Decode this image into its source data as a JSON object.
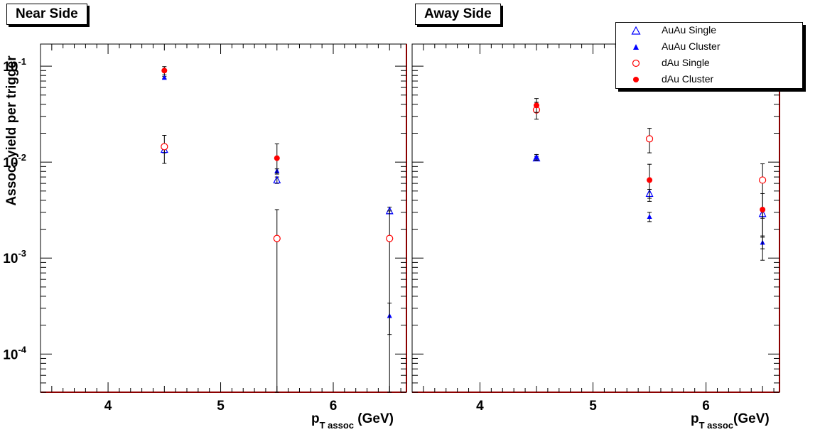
{
  "chart_data": [
    {
      "type": "scatter",
      "title": "Near Side",
      "xlabel": "p_T assoc (GeV)",
      "xlabel_main": "p",
      "xlabel_sub": "T assoc",
      "xlabel_unit": " (GeV)",
      "ylabel": "Assoc. yield per trigger",
      "xlim": [
        3.4,
        6.65
      ],
      "ylim": [
        4e-05,
        0.17
      ],
      "yscale": "log",
      "xticks": [
        4,
        5,
        6
      ],
      "xtick_labels": [
        "4",
        "5",
        "6"
      ],
      "yticks": [
        0.0001,
        0.001,
        0.01,
        0.1
      ],
      "ytick_base": [
        "10",
        "10",
        "10",
        "10"
      ],
      "ytick_exp": [
        "-4",
        "-3",
        "-2",
        "-1"
      ],
      "series": [
        {
          "name": "AuAu Single",
          "marker": "open-triangle",
          "color": "#0000ff",
          "points": [
            {
              "x": 4.5,
              "y": 0.0135,
              "lo": 0.0125,
              "hi": 0.0145
            },
            {
              "x": 5.5,
              "y": 0.0065,
              "lo": 0.006,
              "hi": 0.007
            },
            {
              "x": 6.5,
              "y": 0.0031,
              "lo": 0.0029,
              "hi": 0.0034
            }
          ]
        },
        {
          "name": "AuAu Cluster",
          "marker": "filled-triangle",
          "color": "#0000ff",
          "points": [
            {
              "x": 4.5,
              "y": 0.076,
              "lo": 0.074,
              "hi": 0.078
            },
            {
              "x": 5.5,
              "y": 0.0081,
              "lo": 0.0077,
              "hi": 0.0085
            },
            {
              "x": 6.5,
              "y": 0.00025,
              "lo": 0.00016,
              "hi": 0.00034
            }
          ]
        },
        {
          "name": "dAu Single",
          "marker": "open-circle",
          "color": "#ff0000",
          "points": [
            {
              "x": 4.5,
              "y": 0.0145,
              "lo": 0.0097,
              "hi": 0.019
            },
            {
              "x": 5.5,
              "y": 0.0016,
              "lo": 1e-05,
              "hi": 0.0032
            },
            {
              "x": 6.5,
              "y": 0.0016,
              "lo": 1e-05,
              "hi": 0.0031
            }
          ]
        },
        {
          "name": "dAu Cluster",
          "marker": "filled-circle",
          "color": "#ff0000",
          "points": [
            {
              "x": 4.5,
              "y": 0.09,
              "lo": 0.081,
              "hi": 0.099
            },
            {
              "x": 5.5,
              "y": 0.011,
              "lo": 0.0075,
              "hi": 0.0155
            }
          ]
        }
      ]
    },
    {
      "type": "scatter",
      "title": "Away Side",
      "xlabel": "p_T assoc (GeV)",
      "xlabel_main": "p",
      "xlabel_sub": "T assoc",
      "xlabel_unit": "(GeV)",
      "ylabel": "",
      "xlim": [
        3.4,
        6.65
      ],
      "ylim": [
        4e-05,
        0.17
      ],
      "yscale": "log",
      "xticks": [
        4,
        5,
        6
      ],
      "xtick_labels": [
        "4",
        "5",
        "6"
      ],
      "series": [
        {
          "name": "AuAu Single",
          "marker": "open-triangle",
          "color": "#0000ff",
          "points": [
            {
              "x": 4.5,
              "y": 0.011,
              "lo": 0.0105,
              "hi": 0.0115
            },
            {
              "x": 5.5,
              "y": 0.0047,
              "lo": 0.0042,
              "hi": 0.0052
            },
            {
              "x": 6.5,
              "y": 0.0029,
              "lo": 0.0026,
              "hi": 0.0032
            }
          ]
        },
        {
          "name": "AuAu Cluster",
          "marker": "filled-triangle",
          "color": "#0000ff",
          "points": [
            {
              "x": 4.5,
              "y": 0.0112,
              "lo": 0.0105,
              "hi": 0.012
            },
            {
              "x": 5.5,
              "y": 0.0027,
              "lo": 0.0024,
              "hi": 0.003
            },
            {
              "x": 6.5,
              "y": 0.00145,
              "lo": 0.00125,
              "hi": 0.00165
            }
          ]
        },
        {
          "name": "dAu Single",
          "marker": "open-circle",
          "color": "#ff0000",
          "points": [
            {
              "x": 4.5,
              "y": 0.035,
              "lo": 0.028,
              "hi": 0.042
            },
            {
              "x": 5.5,
              "y": 0.0175,
              "lo": 0.0125,
              "hi": 0.0225
            },
            {
              "x": 6.5,
              "y": 0.0065,
              "lo": 0.00095,
              "hi": 0.0096
            }
          ]
        },
        {
          "name": "dAu Cluster",
          "marker": "filled-circle",
          "color": "#ff0000",
          "points": [
            {
              "x": 4.5,
              "y": 0.039,
              "lo": 0.033,
              "hi": 0.046
            },
            {
              "x": 5.5,
              "y": 0.0065,
              "lo": 0.0039,
              "hi": 0.0095
            },
            {
              "x": 6.5,
              "y": 0.0032,
              "lo": 0.0017,
              "hi": 0.0047
            }
          ]
        }
      ]
    }
  ],
  "legend": {
    "placement": "top-right",
    "entries": [
      {
        "label": "AuAu Single",
        "marker": "open-triangle",
        "color": "#0000ff"
      },
      {
        "label": "AuAu Cluster",
        "marker": "filled-triangle",
        "color": "#0000ff"
      },
      {
        "label": "dAu Single",
        "marker": "open-circle",
        "color": "#ff0000"
      },
      {
        "label": "dAu Cluster",
        "marker": "filled-circle",
        "color": "#ff0000"
      }
    ]
  },
  "colors": {
    "frame_axis": "#8b0000",
    "error_bar": "#000000"
  }
}
